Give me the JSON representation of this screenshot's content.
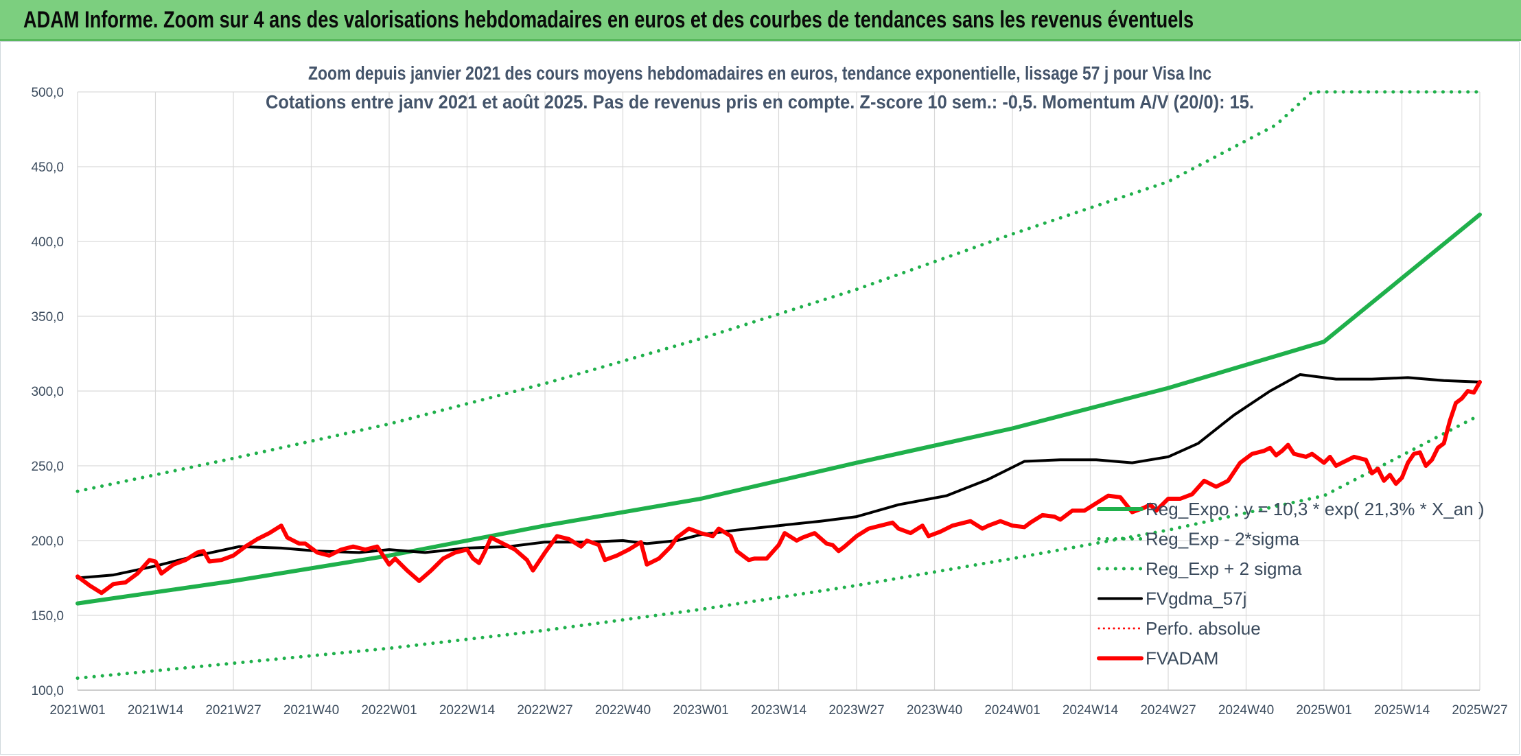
{
  "header": {
    "title": "ADAM Informe. Zoom sur 4 ans des valorisations hebdomadaires en euros et des courbes de tendances sans les revenus éventuels"
  },
  "chart_data": {
    "type": "line",
    "subtitle_lines": [
      "Zoom depuis janvier 2021 des cours moyens hebdomadaires en euros, tendance exponentielle, lissage 57 j pour Visa Inc",
      "Cotations entre janv 2021 et août 2025. Pas de revenus pris en compte. Z-score 10 sem.: -0,5. Momentum A/V (20/0): 15."
    ],
    "x_tick_labels": [
      "2021W01",
      "2021W14",
      "2021W27",
      "2021W40",
      "2022W01",
      "2022W14",
      "2022W27",
      "2022W40",
      "2023W01",
      "2023W14",
      "2023W27",
      "2023W40",
      "2024W01",
      "2024W14",
      "2024W27",
      "2024W40",
      "2025W01",
      "2025W14",
      "2025W27"
    ],
    "y_tick_labels": [
      "100,0",
      "150,0",
      "200,0",
      "250,0",
      "300,0",
      "350,0",
      "400,0",
      "450,0",
      "500,0"
    ],
    "ylim": [
      100,
      500
    ],
    "grid": true,
    "legend_position": "bottom-right",
    "x_range_weeks": [
      0,
      234
    ],
    "week_per_tick": 13,
    "series": [
      {
        "name": "Reg_Expo : y = 10,3 * exp( 21,3% *  X_an )",
        "color": "#1fb04b",
        "style": "solid",
        "width": 6,
        "points": [
          [
            0,
            158
          ],
          [
            26,
            173
          ],
          [
            52,
            190
          ],
          [
            78,
            210
          ],
          [
            104,
            228
          ],
          [
            130,
            252
          ],
          [
            156,
            275
          ],
          [
            182,
            302
          ],
          [
            208,
            333
          ],
          [
            234,
            418
          ]
        ]
      },
      {
        "name": "Reg_Exp - 2*sigma",
        "color": "#1fb04b",
        "style": "dotted",
        "width": 5,
        "points": [
          [
            0,
            108
          ],
          [
            26,
            118
          ],
          [
            52,
            128
          ],
          [
            78,
            140
          ],
          [
            104,
            154
          ],
          [
            130,
            170
          ],
          [
            156,
            188
          ],
          [
            182,
            207
          ],
          [
            208,
            230
          ],
          [
            234,
            284
          ]
        ]
      },
      {
        "name": "Reg_Exp + 2 sigma",
        "color": "#1fb04b",
        "style": "dotted",
        "width": 5,
        "points": [
          [
            0,
            233
          ],
          [
            26,
            255
          ],
          [
            52,
            278
          ],
          [
            78,
            305
          ],
          [
            104,
            335
          ],
          [
            130,
            368
          ],
          [
            156,
            405
          ],
          [
            182,
            440
          ],
          [
            200,
            478
          ],
          [
            206,
            500
          ],
          [
            234,
            500
          ]
        ]
      },
      {
        "name": "FVgdma_57j",
        "color": "#000000",
        "style": "solid",
        "width": 4,
        "points": [
          [
            0,
            175
          ],
          [
            6,
            177
          ],
          [
            13,
            183
          ],
          [
            20,
            190
          ],
          [
            27,
            196
          ],
          [
            34,
            195
          ],
          [
            40,
            193
          ],
          [
            47,
            192
          ],
          [
            52,
            194
          ],
          [
            58,
            192
          ],
          [
            65,
            195
          ],
          [
            72,
            196
          ],
          [
            78,
            199
          ],
          [
            85,
            199
          ],
          [
            91,
            200
          ],
          [
            95,
            198
          ],
          [
            100,
            200
          ],
          [
            104,
            204
          ],
          [
            110,
            207
          ],
          [
            117,
            210
          ],
          [
            124,
            213
          ],
          [
            130,
            216
          ],
          [
            137,
            224
          ],
          [
            145,
            230
          ],
          [
            152,
            241
          ],
          [
            158,
            253
          ],
          [
            164,
            254
          ],
          [
            170,
            254
          ],
          [
            176,
            252
          ],
          [
            182,
            256
          ],
          [
            187,
            265
          ],
          [
            193,
            284
          ],
          [
            199,
            300
          ],
          [
            204,
            311
          ],
          [
            210,
            308
          ],
          [
            216,
            308
          ],
          [
            222,
            309
          ],
          [
            228,
            307
          ],
          [
            234,
            306
          ]
        ]
      },
      {
        "name": "Perfo. absolue",
        "color": "#ff0000",
        "style": "dotted",
        "width": 3,
        "points": []
      },
      {
        "name": "FVADAM",
        "color": "#ff0000",
        "style": "solid",
        "width": 6,
        "points": [
          [
            0,
            176
          ],
          [
            2,
            170
          ],
          [
            4,
            165
          ],
          [
            6,
            171
          ],
          [
            8,
            172
          ],
          [
            10,
            178
          ],
          [
            12,
            187
          ],
          [
            13,
            186
          ],
          [
            14,
            178
          ],
          [
            16,
            184
          ],
          [
            18,
            187
          ],
          [
            20,
            192
          ],
          [
            21,
            193
          ],
          [
            22,
            186
          ],
          [
            24,
            187
          ],
          [
            26,
            190
          ],
          [
            28,
            196
          ],
          [
            30,
            201
          ],
          [
            32,
            205
          ],
          [
            34,
            210
          ],
          [
            35,
            202
          ],
          [
            37,
            198
          ],
          [
            38,
            198
          ],
          [
            40,
            192
          ],
          [
            42,
            190
          ],
          [
            44,
            194
          ],
          [
            46,
            196
          ],
          [
            48,
            194
          ],
          [
            50,
            196
          ],
          [
            52,
            184
          ],
          [
            53,
            188
          ],
          [
            55,
            180
          ],
          [
            57,
            173
          ],
          [
            59,
            180
          ],
          [
            61,
            188
          ],
          [
            63,
            192
          ],
          [
            65,
            194
          ],
          [
            66,
            188
          ],
          [
            67,
            185
          ],
          [
            68,
            193
          ],
          [
            69,
            202
          ],
          [
            71,
            198
          ],
          [
            73,
            194
          ],
          [
            75,
            187
          ],
          [
            76,
            180
          ],
          [
            78,
            192
          ],
          [
            80,
            203
          ],
          [
            82,
            201
          ],
          [
            84,
            196
          ],
          [
            85,
            200
          ],
          [
            87,
            197
          ],
          [
            88,
            187
          ],
          [
            90,
            190
          ],
          [
            92,
            194
          ],
          [
            94,
            199
          ],
          [
            95,
            184
          ],
          [
            97,
            188
          ],
          [
            99,
            196
          ],
          [
            100,
            202
          ],
          [
            102,
            208
          ],
          [
            104,
            205
          ],
          [
            106,
            203
          ],
          [
            107,
            208
          ],
          [
            109,
            203
          ],
          [
            110,
            193
          ],
          [
            112,
            187
          ],
          [
            113,
            188
          ],
          [
            115,
            188
          ],
          [
            117,
            197
          ],
          [
            118,
            205
          ],
          [
            120,
            200
          ],
          [
            121,
            202
          ],
          [
            123,
            205
          ],
          [
            125,
            198
          ],
          [
            126,
            197
          ],
          [
            127,
            193
          ],
          [
            128,
            196
          ],
          [
            130,
            203
          ],
          [
            132,
            208
          ],
          [
            134,
            210
          ],
          [
            136,
            212
          ],
          [
            137,
            208
          ],
          [
            139,
            205
          ],
          [
            141,
            210
          ],
          [
            142,
            203
          ],
          [
            144,
            206
          ],
          [
            146,
            210
          ],
          [
            148,
            212
          ],
          [
            149,
            213
          ],
          [
            151,
            208
          ],
          [
            152,
            210
          ],
          [
            154,
            213
          ],
          [
            156,
            210
          ],
          [
            158,
            209
          ],
          [
            159,
            212
          ],
          [
            161,
            217
          ],
          [
            163,
            216
          ],
          [
            164,
            214
          ],
          [
            165,
            217
          ],
          [
            166,
            220
          ],
          [
            168,
            220
          ],
          [
            170,
            225
          ],
          [
            172,
            230
          ],
          [
            174,
            229
          ],
          [
            176,
            219
          ],
          [
            178,
            222
          ],
          [
            179,
            224
          ],
          [
            180,
            220
          ],
          [
            182,
            228
          ],
          [
            184,
            228
          ],
          [
            186,
            231
          ],
          [
            188,
            240
          ],
          [
            190,
            236
          ],
          [
            192,
            240
          ],
          [
            194,
            252
          ],
          [
            196,
            258
          ],
          [
            198,
            260
          ],
          [
            199,
            262
          ],
          [
            200,
            257
          ],
          [
            201,
            260
          ],
          [
            202,
            264
          ],
          [
            203,
            258
          ],
          [
            205,
            256
          ],
          [
            206,
            258
          ],
          [
            207,
            255
          ],
          [
            208,
            252
          ],
          [
            209,
            256
          ],
          [
            210,
            250
          ],
          [
            211,
            252
          ],
          [
            212,
            254
          ],
          [
            213,
            256
          ],
          [
            215,
            254
          ],
          [
            216,
            245
          ],
          [
            217,
            248
          ],
          [
            218,
            240
          ],
          [
            219,
            244
          ],
          [
            220,
            238
          ],
          [
            221,
            242
          ],
          [
            222,
            252
          ],
          [
            223,
            258
          ],
          [
            224,
            259
          ],
          [
            225,
            250
          ],
          [
            226,
            254
          ],
          [
            227,
            262
          ],
          [
            228,
            265
          ],
          [
            229,
            280
          ],
          [
            230,
            292
          ],
          [
            231,
            295
          ],
          [
            232,
            300
          ],
          [
            233,
            299
          ],
          [
            234,
            306
          ]
        ]
      }
    ]
  }
}
